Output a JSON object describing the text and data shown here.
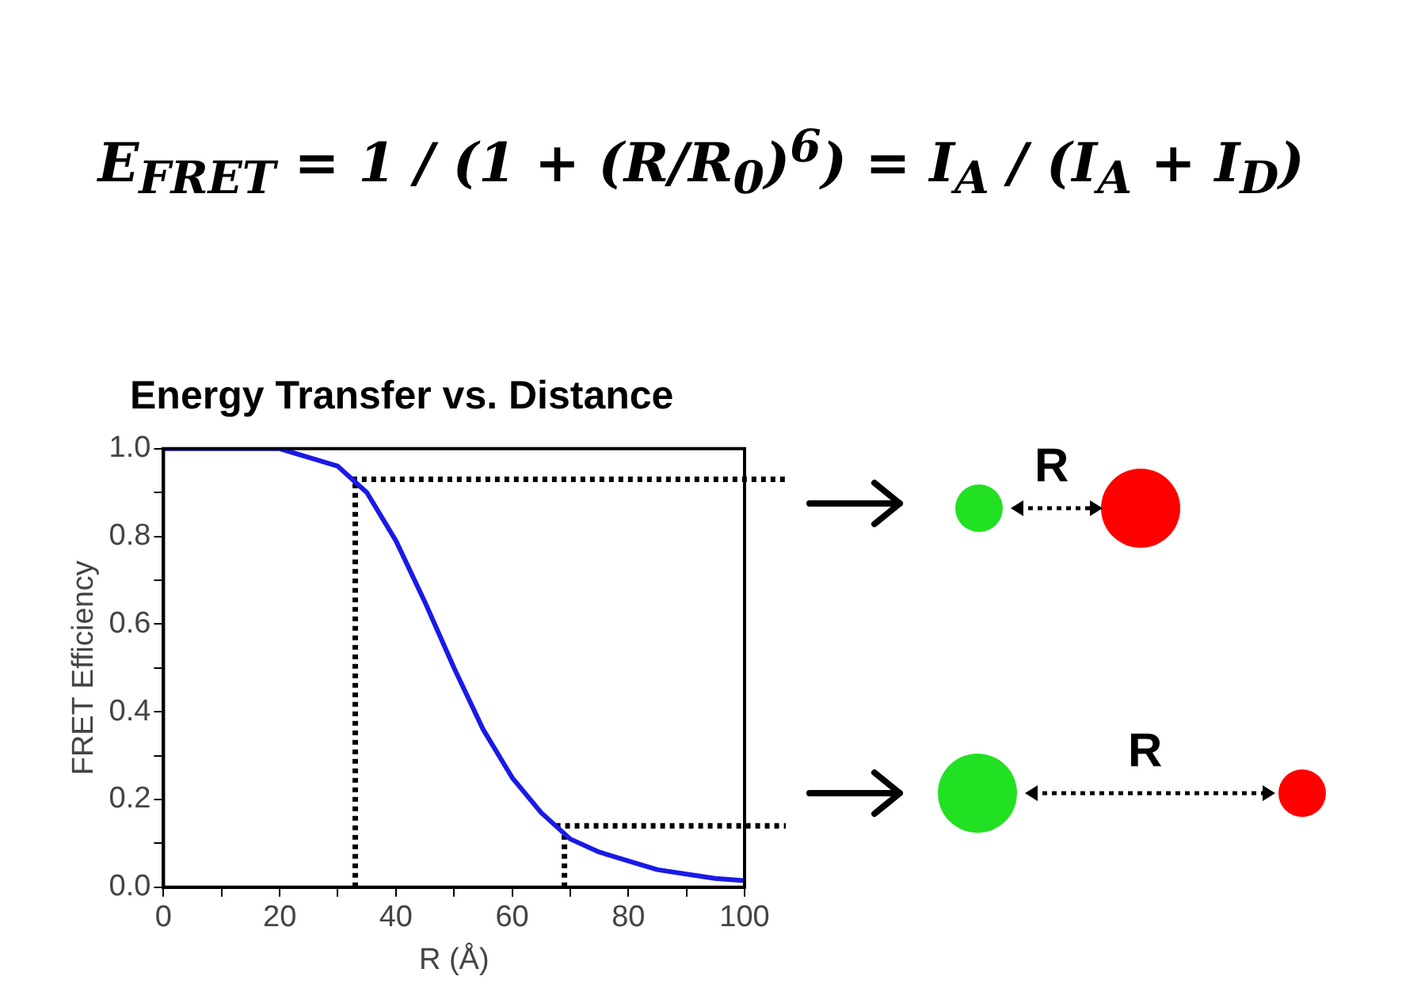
{
  "chart_data": {
    "type": "line",
    "title": "Energy Transfer vs. Distance",
    "xlabel": "R (Å)",
    "ylabel": "FRET Efficiency",
    "x": [
      0,
      5,
      10,
      15,
      20,
      25,
      30,
      35,
      40,
      45,
      50,
      55,
      60,
      65,
      70,
      75,
      80,
      85,
      90,
      95,
      100
    ],
    "series": [
      {
        "color": "#1a1ae6",
        "values": [
          1,
          1,
          1,
          1,
          1.0,
          0.98,
          0.96,
          0.9,
          0.79,
          0.65,
          0.5,
          0.36,
          0.25,
          0.17,
          0.11,
          0.08,
          0.06,
          0.04,
          0.03,
          0.02,
          0.015
        ]
      }
    ],
    "xlim": [
      0,
      100
    ],
    "ylim": [
      0,
      1
    ],
    "xticks": [
      0,
      {
        "value": 10,
        "label": null
      },
      20,
      {
        "value": 30,
        "label": null
      },
      40,
      {
        "value": 50,
        "label": null
      },
      60,
      {
        "value": 70,
        "label": null
      },
      80,
      {
        "value": 90,
        "label": null
      },
      100
    ],
    "yticks": [
      {
        "value": 0,
        "label": "0.0"
      },
      {
        "value": 0.1,
        "label": null
      },
      0.2,
      {
        "value": 0.3,
        "label": null
      },
      0.4,
      {
        "value": 0.5,
        "label": null
      },
      0.6,
      {
        "value": 0.7,
        "label": null
      },
      0.8,
      {
        "value": 0.9,
        "label": null
      },
      {
        "value": 1,
        "label": "1.0"
      }
    ],
    "ref_lines": [
      {
        "axis": "x",
        "value": 33,
        "line_style": "dotted",
        "color": "#000000"
      },
      {
        "axis": "y",
        "value": 0.93,
        "line_style": "dotted",
        "color": "#000000"
      },
      {
        "axis": "x",
        "value": 69,
        "line_style": "dotted",
        "color": "#000000"
      },
      {
        "axis": "y",
        "value": 0.14,
        "line_style": "dotted",
        "color": "#000000"
      }
    ],
    "annotations": [
      "E$_{FRET}$ = 1 / (1 + (R/R$_{0}$)$^{6}$) = I$_{A}$ / (I$_{A}$ + I$_{D}$)",
      "R",
      "R"
    ],
    "grid": false,
    "legend": false,
    "marker": "none",
    "line_style": "solid"
  }
}
